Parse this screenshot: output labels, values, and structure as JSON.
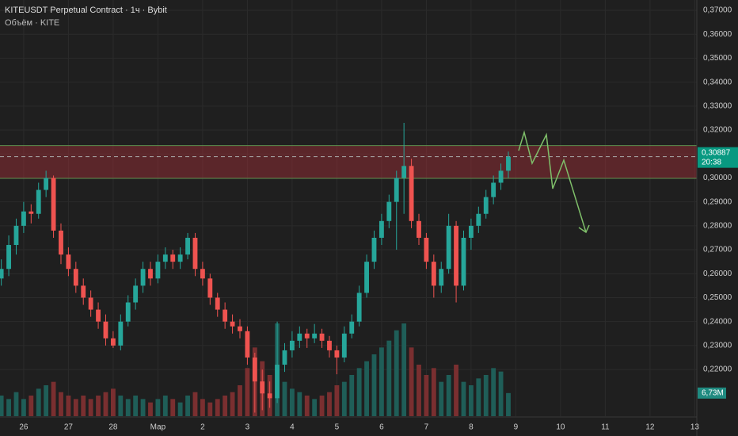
{
  "chart_data": {
    "type": "candlestick",
    "title": "KITEUSDT Perpetual Contract · 1ч · Bybit",
    "subtitle": "Объём · KITE",
    "up_color": "#26a69a",
    "down_color": "#ef5350",
    "volume_up_color": "#1f5e58",
    "volume_down_color": "#7a2f30",
    "xlim": [
      11.3,
      385.1
    ],
    "ylim": [
      0.2005,
      0.3743
    ],
    "volume_ylim": [
      0,
      30
    ],
    "grid": true,
    "xticks": [
      {
        "value": 24,
        "label": "26"
      },
      {
        "value": 48,
        "label": "27"
      },
      {
        "value": 72,
        "label": "28"
      },
      {
        "value": 96,
        "label": "Мар"
      },
      {
        "value": 120,
        "label": "2"
      },
      {
        "value": 144,
        "label": "3"
      },
      {
        "value": 168,
        "label": "4"
      },
      {
        "value": 192,
        "label": "5"
      },
      {
        "value": 216,
        "label": "6"
      },
      {
        "value": 240,
        "label": "7"
      },
      {
        "value": 264,
        "label": "8"
      },
      {
        "value": 288,
        "label": "9"
      },
      {
        "value": 312,
        "label": "10"
      },
      {
        "value": 336,
        "label": "11"
      },
      {
        "value": 360,
        "label": "12"
      },
      {
        "value": 384,
        "label": "13"
      }
    ],
    "yticks": [
      {
        "value": 0.37,
        "label": "0,37000"
      },
      {
        "value": 0.36,
        "label": "0,36000"
      },
      {
        "value": 0.35,
        "label": "0,35000"
      },
      {
        "value": 0.34,
        "label": "0,34000"
      },
      {
        "value": 0.33,
        "label": "0,33000"
      },
      {
        "value": 0.32,
        "label": "0,32000"
      },
      {
        "value": 0.31,
        "label": "0,31000"
      },
      {
        "value": 0.3,
        "label": "0,30000"
      },
      {
        "value": 0.29,
        "label": "0,29000"
      },
      {
        "value": 0.28,
        "label": "0,28000"
      },
      {
        "value": 0.27,
        "label": "0,27000"
      },
      {
        "value": 0.26,
        "label": "0,26000"
      },
      {
        "value": 0.25,
        "label": "0,25000"
      },
      {
        "value": 0.24,
        "label": "0,24000"
      },
      {
        "value": 0.23,
        "label": "0,23000"
      },
      {
        "value": 0.22,
        "label": "0,22000"
      }
    ],
    "zone": [
      0.2998,
      0.3135
    ],
    "last_price": {
      "value": 0.30887,
      "label": "0,30887"
    },
    "countdown": "20:38",
    "last_volume": {
      "value": 6.73,
      "label": "6,73M"
    },
    "candles": [
      [
        12,
        0.258,
        0.266,
        0.255,
        0.262
      ],
      [
        16,
        0.262,
        0.276,
        0.259,
        0.272
      ],
      [
        20,
        0.272,
        0.283,
        0.268,
        0.28
      ],
      [
        24,
        0.28,
        0.29,
        0.277,
        0.286
      ],
      [
        28,
        0.286,
        0.289,
        0.281,
        0.285
      ],
      [
        32,
        0.285,
        0.298,
        0.283,
        0.295
      ],
      [
        36,
        0.295,
        0.303,
        0.292,
        0.3
      ],
      [
        40,
        0.3,
        0.301,
        0.275,
        0.278
      ],
      [
        44,
        0.278,
        0.281,
        0.264,
        0.268
      ],
      [
        48,
        0.268,
        0.271,
        0.259,
        0.262
      ],
      [
        52,
        0.262,
        0.265,
        0.252,
        0.255
      ],
      [
        56,
        0.255,
        0.258,
        0.247,
        0.25
      ],
      [
        60,
        0.25,
        0.253,
        0.242,
        0.245
      ],
      [
        64,
        0.245,
        0.248,
        0.237,
        0.24
      ],
      [
        68,
        0.24,
        0.243,
        0.23,
        0.233
      ],
      [
        72,
        0.233,
        0.236,
        0.229,
        0.23
      ],
      [
        76,
        0.23,
        0.243,
        0.228,
        0.24
      ],
      [
        80,
        0.24,
        0.251,
        0.238,
        0.248
      ],
      [
        84,
        0.248,
        0.258,
        0.245,
        0.255
      ],
      [
        88,
        0.255,
        0.265,
        0.252,
        0.262
      ],
      [
        92,
        0.262,
        0.265,
        0.255,
        0.258
      ],
      [
        96,
        0.258,
        0.268,
        0.256,
        0.265
      ],
      [
        100,
        0.265,
        0.271,
        0.262,
        0.268
      ],
      [
        104,
        0.268,
        0.27,
        0.262,
        0.265
      ],
      [
        108,
        0.265,
        0.271,
        0.262,
        0.268
      ],
      [
        112,
        0.268,
        0.277,
        0.266,
        0.275
      ],
      [
        116,
        0.275,
        0.277,
        0.259,
        0.262
      ],
      [
        120,
        0.262,
        0.265,
        0.255,
        0.258
      ],
      [
        124,
        0.258,
        0.26,
        0.247,
        0.25
      ],
      [
        128,
        0.25,
        0.252,
        0.242,
        0.245
      ],
      [
        132,
        0.245,
        0.248,
        0.237,
        0.24
      ],
      [
        136,
        0.24,
        0.243,
        0.235,
        0.238
      ],
      [
        140,
        0.238,
        0.241,
        0.233,
        0.236
      ],
      [
        144,
        0.236,
        0.238,
        0.222,
        0.225
      ],
      [
        148,
        0.225,
        0.227,
        0.202,
        0.215
      ],
      [
        152,
        0.215,
        0.22,
        0.203,
        0.21
      ],
      [
        156,
        0.21,
        0.215,
        0.204,
        0.208
      ],
      [
        160,
        0.208,
        0.24,
        0.206,
        0.222
      ],
      [
        164,
        0.222,
        0.231,
        0.219,
        0.228
      ],
      [
        168,
        0.228,
        0.236,
        0.225,
        0.232
      ],
      [
        172,
        0.232,
        0.238,
        0.229,
        0.235
      ],
      [
        176,
        0.235,
        0.237,
        0.229,
        0.233
      ],
      [
        180,
        0.233,
        0.239,
        0.231,
        0.235
      ],
      [
        184,
        0.235,
        0.237,
        0.229,
        0.232
      ],
      [
        188,
        0.232,
        0.234,
        0.225,
        0.228
      ],
      [
        192,
        0.228,
        0.23,
        0.218,
        0.225
      ],
      [
        196,
        0.225,
        0.238,
        0.223,
        0.235
      ],
      [
        200,
        0.235,
        0.243,
        0.233,
        0.24
      ],
      [
        204,
        0.24,
        0.255,
        0.238,
        0.252
      ],
      [
        208,
        0.252,
        0.268,
        0.25,
        0.265
      ],
      [
        212,
        0.265,
        0.278,
        0.262,
        0.275
      ],
      [
        216,
        0.275,
        0.285,
        0.272,
        0.282
      ],
      [
        220,
        0.282,
        0.293,
        0.279,
        0.29
      ],
      [
        224,
        0.29,
        0.303,
        0.27,
        0.3
      ],
      [
        228,
        0.3,
        0.323,
        0.285,
        0.305
      ],
      [
        232,
        0.305,
        0.308,
        0.279,
        0.282
      ],
      [
        236,
        0.282,
        0.285,
        0.272,
        0.275
      ],
      [
        240,
        0.275,
        0.277,
        0.262,
        0.265
      ],
      [
        244,
        0.265,
        0.268,
        0.25,
        0.255
      ],
      [
        248,
        0.255,
        0.265,
        0.252,
        0.262
      ],
      [
        252,
        0.262,
        0.285,
        0.26,
        0.28
      ],
      [
        256,
        0.28,
        0.282,
        0.248,
        0.255
      ],
      [
        260,
        0.255,
        0.278,
        0.253,
        0.275
      ],
      [
        264,
        0.275,
        0.283,
        0.27,
        0.28
      ],
      [
        268,
        0.28,
        0.288,
        0.277,
        0.285
      ],
      [
        272,
        0.285,
        0.295,
        0.283,
        0.292
      ],
      [
        276,
        0.292,
        0.301,
        0.289,
        0.298
      ],
      [
        280,
        0.298,
        0.306,
        0.295,
        0.303
      ],
      [
        284,
        0.303,
        0.311,
        0.3,
        0.30887
      ]
    ],
    "volume": [
      6,
      5,
      7,
      5,
      6,
      8,
      9,
      10,
      7,
      6,
      5,
      6,
      5,
      6,
      7,
      8,
      6,
      5,
      6,
      5,
      4,
      5,
      6,
      5,
      4,
      6,
      7,
      5,
      4,
      5,
      6,
      7,
      9,
      14,
      20,
      16,
      12,
      27,
      10,
      8,
      7,
      6,
      5,
      6,
      7,
      9,
      10,
      12,
      14,
      16,
      18,
      20,
      22,
      25,
      27,
      20,
      15,
      12,
      14,
      10,
      12,
      15,
      10,
      9,
      11,
      12,
      14,
      13,
      6.73
    ]
  }
}
